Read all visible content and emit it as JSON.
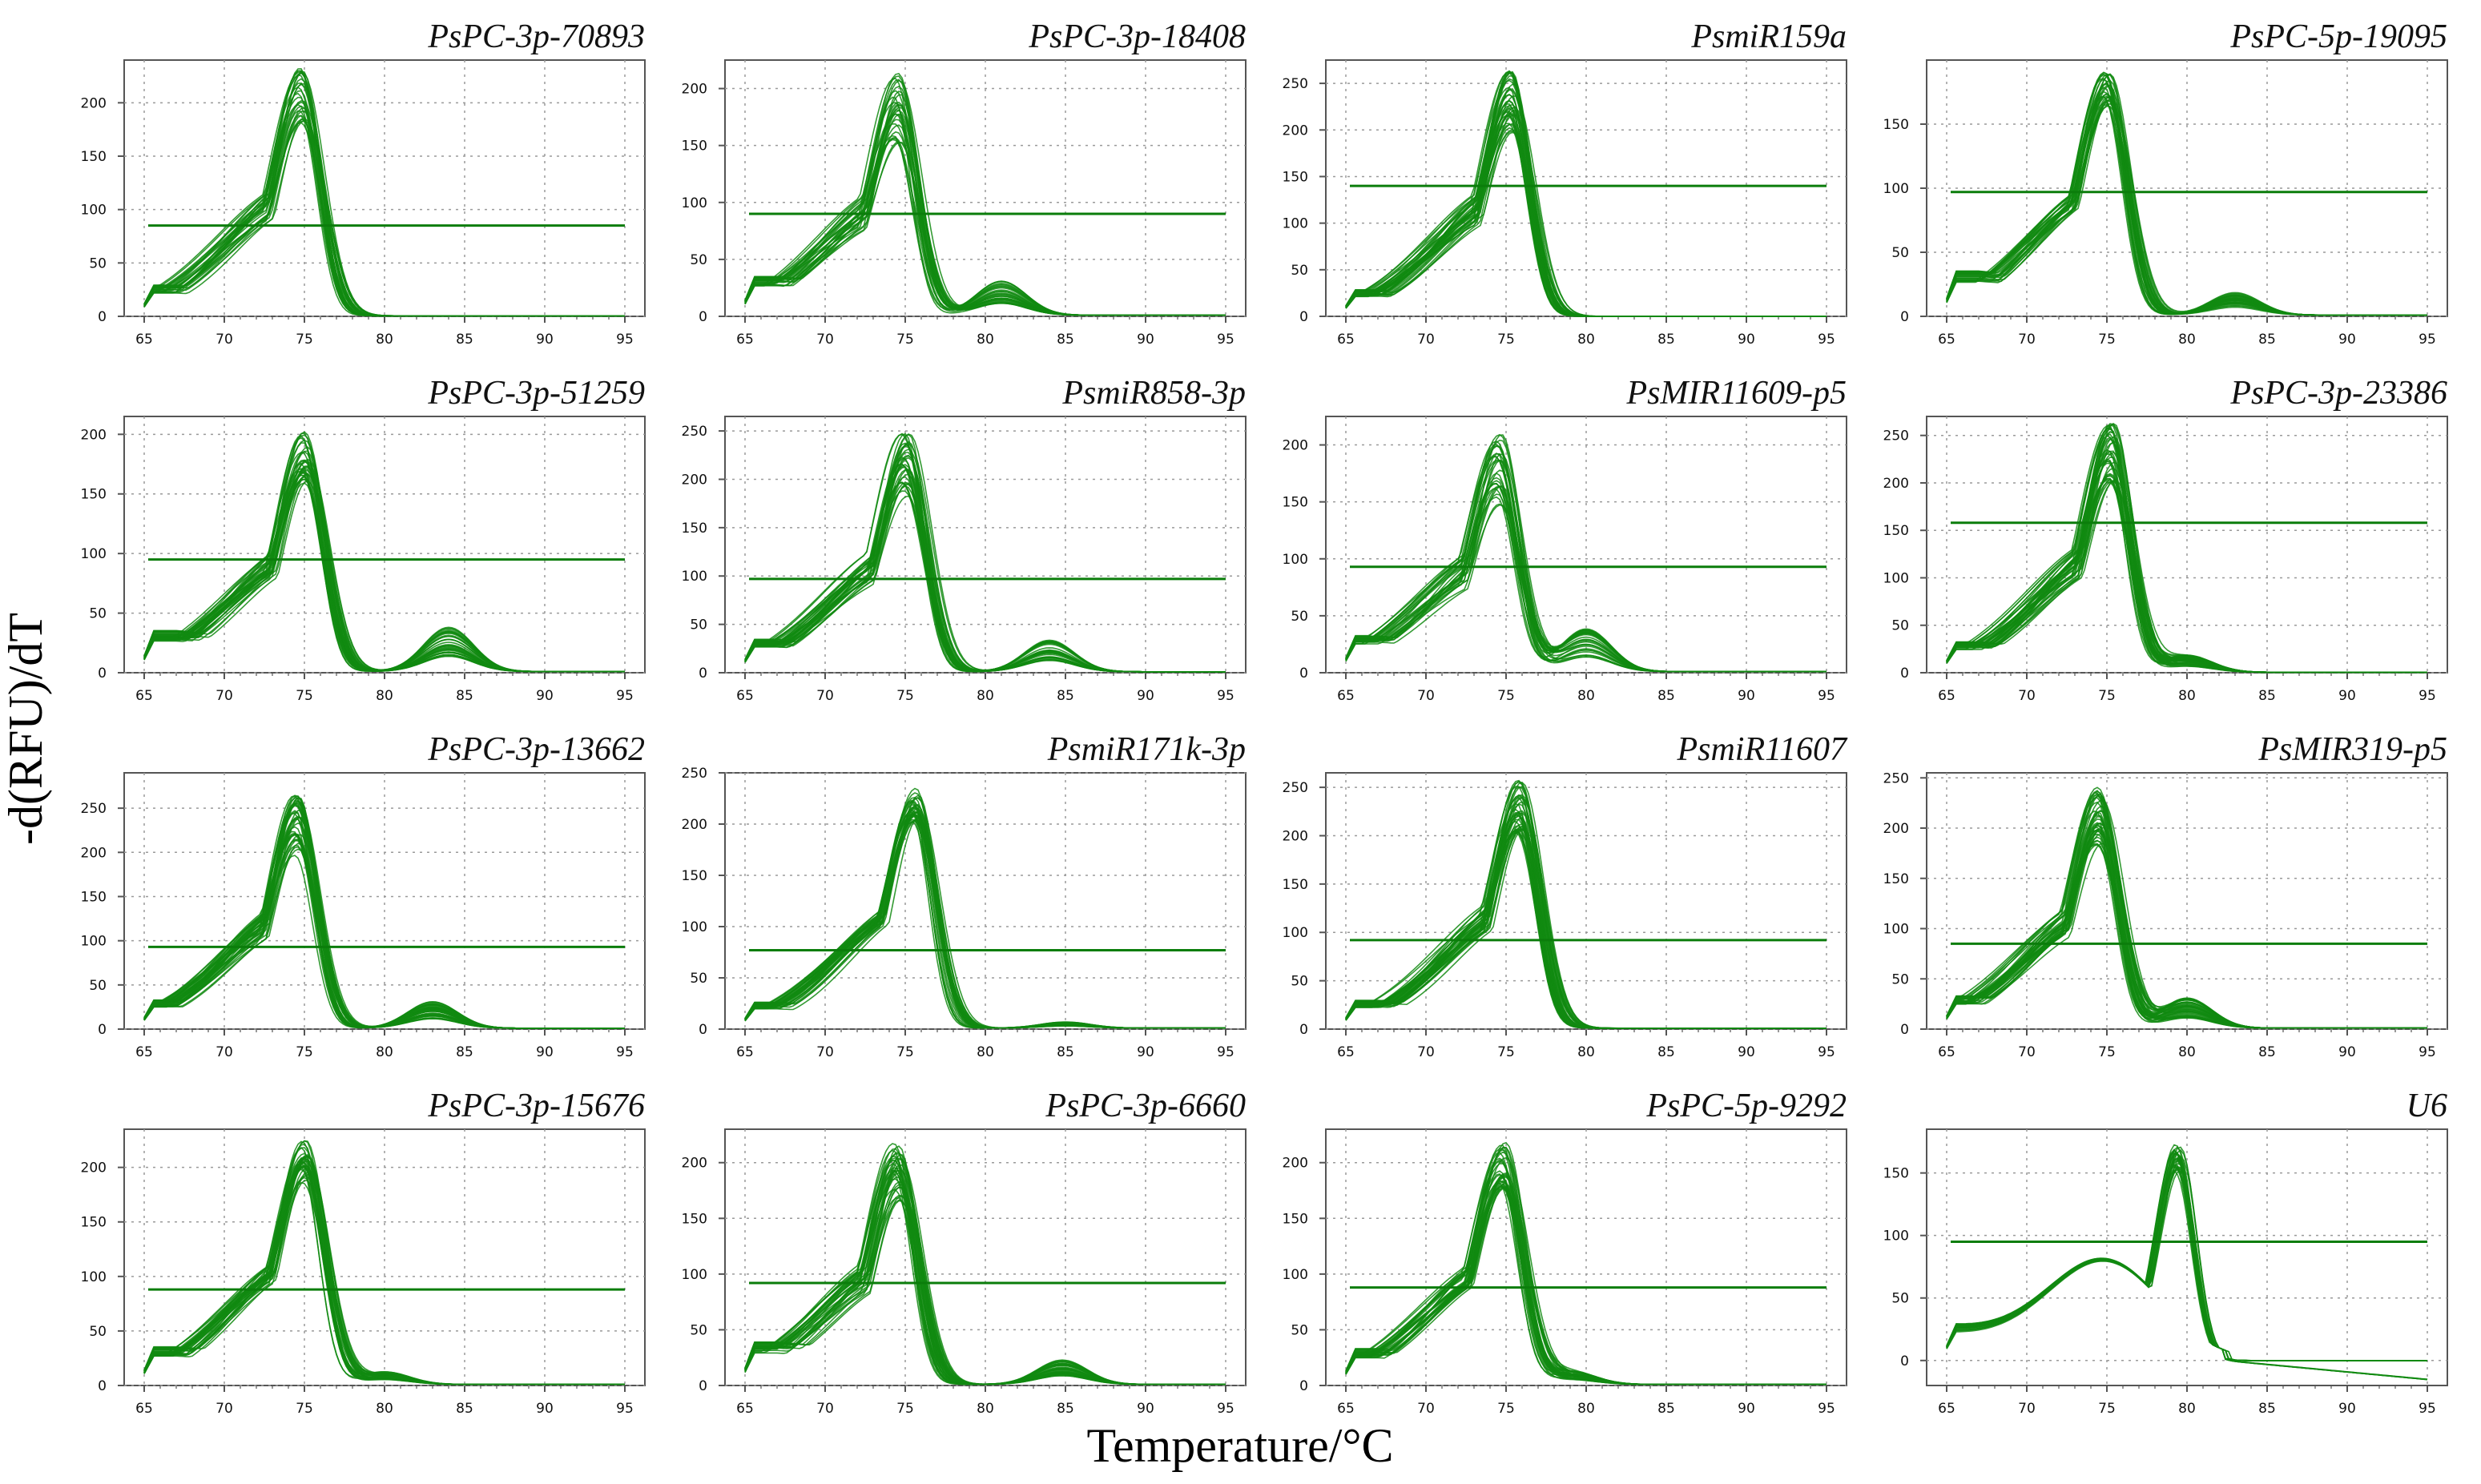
{
  "figure": {
    "ylabel": "-d(RFU)/dT",
    "xlabel": "Temperature/°C"
  },
  "colors": {
    "curve": "#118a11",
    "threshold": "#0b7d0b",
    "frame": "#555555",
    "grid": "#9a9a9a",
    "text": "#111111"
  },
  "chart_data": [
    {
      "type": "line",
      "title": "PsPC-3p-70893",
      "xlim": [
        65,
        95
      ],
      "xticks": [
        65,
        70,
        75,
        80,
        85,
        90,
        95
      ],
      "ylim": [
        0,
        240
      ],
      "yticks": [
        0,
        50,
        100,
        150,
        200
      ],
      "threshold": 85,
      "peak_x": 74.8,
      "peak_range": [
        180,
        233
      ],
      "base_start": 25,
      "shoulder": null,
      "tail": 0.5,
      "n_curves": 30,
      "series_note": "melt curves"
    },
    {
      "type": "line",
      "title": "PsPC-3p-18408",
      "xlim": [
        65,
        95
      ],
      "xticks": [
        65,
        70,
        75,
        80,
        85,
        90,
        95
      ],
      "ylim": [
        0,
        225
      ],
      "yticks": [
        0,
        50,
        100,
        150,
        200
      ],
      "threshold": 90,
      "peak_x": 74.5,
      "peak_range": [
        150,
        215
      ],
      "base_start": 30,
      "shoulder": {
        "x": 81,
        "h": 20
      },
      "tail": 1,
      "n_curves": 30
    },
    {
      "type": "line",
      "title": "PsmiR159a",
      "xlim": [
        65,
        95
      ],
      "xticks": [
        65,
        70,
        75,
        80,
        85,
        90,
        95
      ],
      "ylim": [
        0,
        275
      ],
      "yticks": [
        0,
        50,
        100,
        150,
        200,
        250
      ],
      "threshold": 140,
      "peak_x": 75.3,
      "peak_range": [
        195,
        265
      ],
      "base_start": 25,
      "shoulder": null,
      "tail": 0,
      "n_curves": 40
    },
    {
      "type": "line",
      "title": "PsPC-5p-19095",
      "xlim": [
        65,
        95
      ],
      "xticks": [
        65,
        70,
        75,
        80,
        85,
        90,
        95
      ],
      "ylim": [
        0,
        200
      ],
      "yticks": [
        0,
        50,
        100,
        150
      ],
      "threshold": 97,
      "peak_x": 75,
      "peak_range": [
        160,
        190
      ],
      "base_start": 30,
      "shoulder": {
        "x": 83,
        "h": 12
      },
      "tail": 1,
      "n_curves": 30
    },
    {
      "type": "line",
      "title": "PsPC-3p-51259",
      "xlim": [
        65,
        95
      ],
      "xticks": [
        65,
        70,
        75,
        80,
        85,
        90,
        95
      ],
      "ylim": [
        0,
        215
      ],
      "yticks": [
        0,
        50,
        100,
        150,
        200
      ],
      "threshold": 95,
      "peak_x": 75,
      "peak_range": [
        155,
        205
      ],
      "base_start": 30,
      "shoulder": {
        "x": 84,
        "h": 25
      },
      "tail": 1,
      "n_curves": 35
    },
    {
      "type": "line",
      "title": "PsmiR858-3p",
      "xlim": [
        65,
        95
      ],
      "xticks": [
        65,
        70,
        75,
        80,
        85,
        90,
        95
      ],
      "ylim": [
        0,
        265
      ],
      "yticks": [
        0,
        50,
        100,
        150,
        200,
        250
      ],
      "threshold": 97,
      "peak_x": 75,
      "peak_range": [
        180,
        250
      ],
      "base_start": 30,
      "shoulder": {
        "x": 84,
        "h": 22
      },
      "tail": 1,
      "n_curves": 35
    },
    {
      "type": "line",
      "title": "PsMIR11609-p5",
      "xlim": [
        65,
        95
      ],
      "xticks": [
        65,
        70,
        75,
        80,
        85,
        90,
        95
      ],
      "ylim": [
        0,
        225
      ],
      "yticks": [
        0,
        50,
        100,
        150,
        200
      ],
      "threshold": 93,
      "peak_x": 74.5,
      "peak_range": [
        145,
        215
      ],
      "base_start": 28,
      "shoulder": {
        "x": 80,
        "h": 25
      },
      "tail": 1,
      "n_curves": 30
    },
    {
      "type": "line",
      "title": "PsPC-3p-23386",
      "xlim": [
        65,
        95
      ],
      "xticks": [
        65,
        70,
        75,
        80,
        85,
        90,
        95
      ],
      "ylim": [
        0,
        270
      ],
      "yticks": [
        0,
        50,
        100,
        150,
        200,
        250
      ],
      "threshold": 158,
      "peak_x": 75.3,
      "peak_range": [
        200,
        262
      ],
      "base_start": 28,
      "shoulder": {
        "x": 80,
        "h": 12
      },
      "tail": 0.5,
      "n_curves": 40
    },
    {
      "type": "line",
      "title": "PsPC-3p-13662",
      "xlim": [
        65,
        95
      ],
      "xticks": [
        65,
        70,
        75,
        80,
        85,
        90,
        95
      ],
      "ylim": [
        0,
        290
      ],
      "yticks": [
        0,
        50,
        100,
        150,
        200,
        250
      ],
      "threshold": 93,
      "peak_x": 74.5,
      "peak_range": [
        195,
        265
      ],
      "base_start": 28,
      "shoulder": {
        "x": 83,
        "h": 20
      },
      "tail": 1,
      "n_curves": 40
    },
    {
      "type": "line",
      "title": "PsmiR171k-3p",
      "xlim": [
        65,
        95
      ],
      "xticks": [
        65,
        70,
        75,
        80,
        85,
        90,
        95
      ],
      "ylim": [
        0,
        250
      ],
      "yticks": [
        0,
        50,
        100,
        150,
        200,
        250
      ],
      "threshold": 77,
      "peak_x": 75.6,
      "peak_range": [
        200,
        235
      ],
      "base_start": 22,
      "shoulder": {
        "x": 85,
        "h": 4
      },
      "tail": 1,
      "n_curves": 35
    },
    {
      "type": "line",
      "title": "PsmiR11607",
      "xlim": [
        65,
        95
      ],
      "xticks": [
        65,
        70,
        75,
        80,
        85,
        90,
        95
      ],
      "ylim": [
        0,
        265
      ],
      "yticks": [
        0,
        50,
        100,
        150,
        200,
        250
      ],
      "threshold": 92,
      "peak_x": 75.8,
      "peak_range": [
        200,
        258
      ],
      "base_start": 25,
      "shoulder": null,
      "tail": 1,
      "n_curves": 40
    },
    {
      "type": "line",
      "title": "PsMIR319-p5",
      "xlim": [
        65,
        95
      ],
      "xticks": [
        65,
        70,
        75,
        80,
        85,
        90,
        95
      ],
      "ylim": [
        0,
        255
      ],
      "yticks": [
        0,
        50,
        100,
        150,
        200,
        250
      ],
      "threshold": 85,
      "peak_x": 74.5,
      "peak_range": [
        180,
        240
      ],
      "base_start": 28,
      "shoulder": {
        "x": 80,
        "h": 20
      },
      "tail": 1,
      "n_curves": 40
    },
    {
      "type": "line",
      "title": "PsPC-3p-15676",
      "xlim": [
        65,
        95
      ],
      "xticks": [
        65,
        70,
        75,
        80,
        85,
        90,
        95
      ],
      "ylim": [
        0,
        235
      ],
      "yticks": [
        0,
        50,
        100,
        150,
        200
      ],
      "threshold": 88,
      "peak_x": 75,
      "peak_range": [
        185,
        228
      ],
      "base_start": 30,
      "shoulder": {
        "x": 80,
        "h": 8
      },
      "tail": 1,
      "n_curves": 35
    },
    {
      "type": "line",
      "title": "PsPC-3p-6660",
      "xlim": [
        65,
        95
      ],
      "xticks": [
        65,
        70,
        75,
        80,
        85,
        90,
        95
      ],
      "ylim": [
        0,
        230
      ],
      "yticks": [
        0,
        50,
        100,
        150,
        200
      ],
      "threshold": 92,
      "peak_x": 74.5,
      "peak_range": [
        160,
        220
      ],
      "base_start": 33,
      "shoulder": {
        "x": 84.8,
        "h": 15
      },
      "tail": 1,
      "n_curves": 35
    },
    {
      "type": "line",
      "title": "PsPC-5p-9292",
      "xlim": [
        65,
        95
      ],
      "xticks": [
        65,
        70,
        75,
        80,
        85,
        90,
        95
      ],
      "ylim": [
        0,
        230
      ],
      "yticks": [
        0,
        50,
        100,
        150,
        200
      ],
      "threshold": 88,
      "peak_x": 74.8,
      "peak_range": [
        175,
        218
      ],
      "base_start": 28,
      "shoulder": {
        "x": 79,
        "h": 8
      },
      "tail": 1,
      "n_curves": 35
    },
    {
      "type": "line",
      "title": "U6",
      "xlim": [
        65,
        95
      ],
      "xticks": [
        65,
        70,
        75,
        80,
        85,
        90,
        95
      ],
      "ylim": [
        -20,
        185
      ],
      "yticks": [
        0,
        50,
        100,
        150
      ],
      "threshold": 95,
      "peak_x": 79.5,
      "peak_range": [
        150,
        175
      ],
      "base_start": 25,
      "shoulder": {
        "x": 75,
        "h": 90
      },
      "tail": 0,
      "n_curves": 30,
      "broad": true
    }
  ]
}
